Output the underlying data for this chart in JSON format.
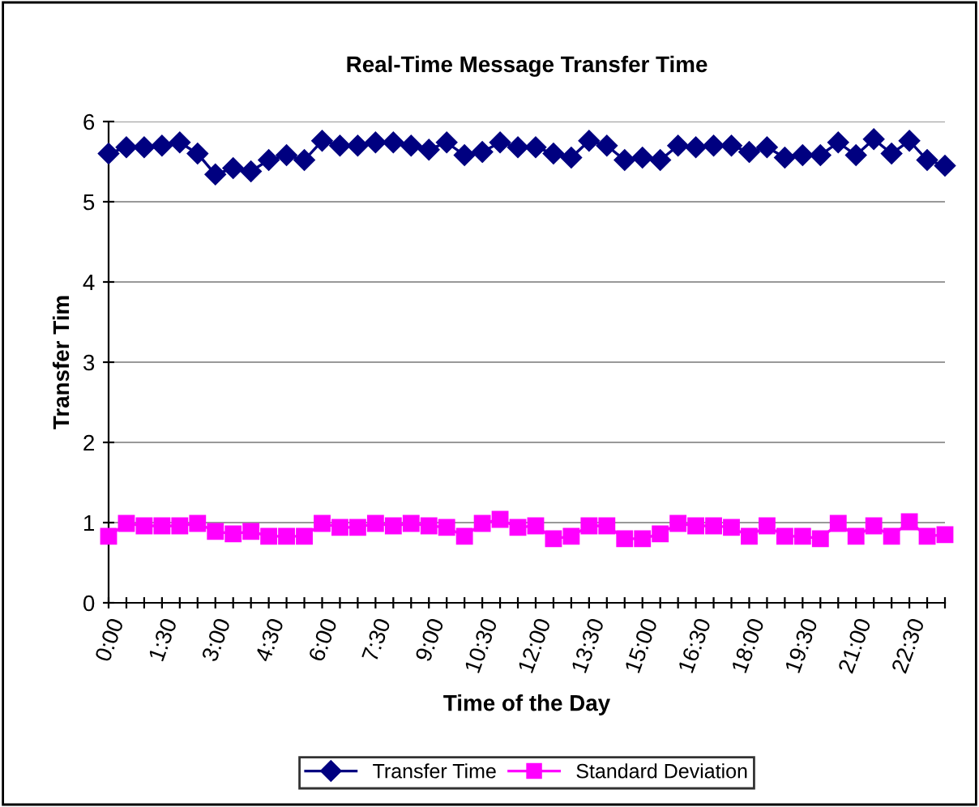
{
  "chart_data": {
    "type": "line",
    "title": "Real-Time Message Transfer Time",
    "xlabel": "Time of the Day",
    "ylabel": "Transfer Tim",
    "categories": [
      "0:00",
      null,
      null,
      "1:30",
      null,
      null,
      "3:00",
      null,
      null,
      "4:30",
      null,
      null,
      "6:00",
      null,
      null,
      "7:30",
      null,
      null,
      "9:00",
      null,
      null,
      "10:30",
      null,
      null,
      "12:00",
      null,
      null,
      "13:30",
      null,
      null,
      "15:00",
      null,
      null,
      "16:30",
      null,
      null,
      "18:00",
      null,
      null,
      "19:30",
      null,
      null,
      "21:00",
      null,
      null,
      "22:30",
      null,
      null
    ],
    "series": [
      {
        "name": "Transfer Time",
        "color": "#000080",
        "marker": "diamond",
        "values": [
          5.6,
          5.68,
          5.68,
          5.7,
          5.74,
          5.6,
          5.34,
          5.42,
          5.38,
          5.52,
          5.58,
          5.52,
          5.76,
          5.7,
          5.7,
          5.74,
          5.74,
          5.7,
          5.65,
          5.74,
          5.58,
          5.62,
          5.74,
          5.68,
          5.68,
          5.6,
          5.55,
          5.76,
          5.7,
          5.52,
          5.55,
          5.52,
          5.7,
          5.68,
          5.7,
          5.7,
          5.62,
          5.68,
          5.55,
          5.58,
          5.58,
          5.74,
          5.58,
          5.78,
          5.6,
          5.76,
          5.52,
          5.45
        ]
      },
      {
        "name": "Standard Deviation",
        "color": "#ff00ff",
        "marker": "square",
        "values": [
          0.83,
          0.99,
          0.96,
          0.96,
          0.96,
          0.99,
          0.89,
          0.86,
          0.89,
          0.83,
          0.83,
          0.83,
          0.99,
          0.94,
          0.94,
          0.99,
          0.96,
          0.99,
          0.96,
          0.94,
          0.83,
          0.99,
          1.04,
          0.94,
          0.96,
          0.8,
          0.83,
          0.96,
          0.96,
          0.8,
          0.8,
          0.86,
          0.99,
          0.96,
          0.96,
          0.94,
          0.83,
          0.96,
          0.83,
          0.83,
          0.8,
          0.99,
          0.83,
          0.96,
          0.83,
          1.01,
          0.83,
          0.85
        ]
      }
    ],
    "ylim": [
      0,
      6
    ],
    "yticks": [
      0,
      1,
      2,
      3,
      4,
      5,
      6
    ],
    "grid": "y",
    "legend": "bottom",
    "line_style": "solid"
  }
}
